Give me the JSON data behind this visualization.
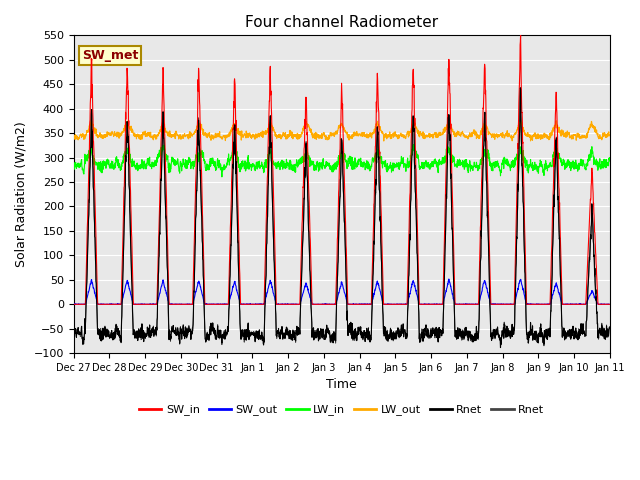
{
  "title": "Four channel Radiometer",
  "xlabel": "Time",
  "ylabel": "Solar Radiation (W/m2)",
  "ylim": [
    -100,
    550
  ],
  "yticks": [
    -100,
    -50,
    0,
    50,
    100,
    150,
    200,
    250,
    300,
    350,
    400,
    450,
    500,
    550
  ],
  "x_labels": [
    "Dec 27",
    "Dec 28",
    "Dec 29",
    "Dec 30",
    "Dec 31",
    "Jan 1",
    "Jan 2",
    "Jan 3",
    "Jan 4",
    "Jan 5",
    "Jan 6",
    "Jan 7",
    "Jan 8",
    "Jan 9",
    "Jan 10",
    "Jan 11"
  ],
  "n_days": 15,
  "annotation": "SW_met",
  "background_color": "#ffffff",
  "plot_bg_color": "#e8e8e8",
  "colors": {
    "SW_in": "#ff0000",
    "SW_out": "#0000ff",
    "LW_in": "#00ff00",
    "LW_out": "#ffaa00",
    "Rnet1": "#000000",
    "Rnet2": "#444444"
  },
  "legend_labels": [
    "SW_in",
    "SW_out",
    "LW_in",
    "LW_out",
    "Rnet",
    "Rnet"
  ]
}
